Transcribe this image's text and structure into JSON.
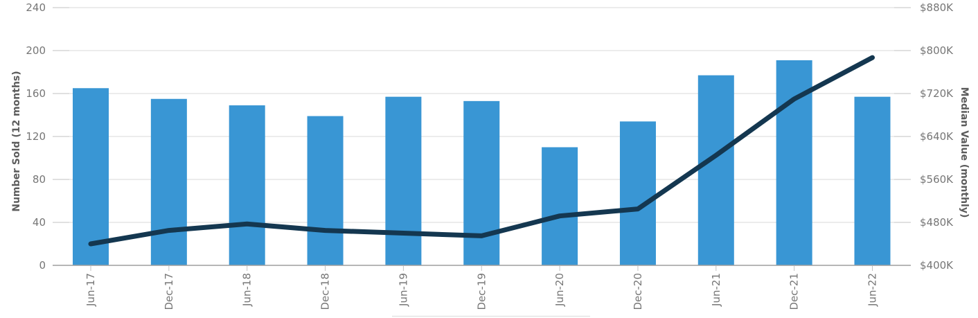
{
  "chart_data": {
    "type": "combo-bar-line",
    "categories": [
      "Jun-17",
      "Dec-17",
      "Jun-18",
      "Dec-18",
      "Jun-19",
      "Dec-19",
      "Jun-20",
      "Dec-20",
      "Jun-21",
      "Dec-21",
      "Jun-22"
    ],
    "series": [
      {
        "name": "Number Sold",
        "type": "bar",
        "axis": "left",
        "values": [
          165,
          155,
          149,
          139,
          157,
          153,
          110,
          134,
          177,
          191,
          157
        ]
      },
      {
        "name": "Median Value",
        "type": "line",
        "axis": "right",
        "unit": "thousand USD",
        "values": [
          440,
          465,
          477,
          465,
          460,
          455,
          492,
          505,
          605,
          710,
          787
        ]
      }
    ],
    "left_axis": {
      "label": "Number Sold (12 months)",
      "ticks": [
        0,
        40,
        80,
        120,
        160,
        200,
        240
      ],
      "range": [
        0,
        240
      ]
    },
    "right_axis": {
      "label": "Median Value (monthly)",
      "tick_labels": [
        "$400K",
        "$480K",
        "$560K",
        "$640K",
        "$720K",
        "$800K",
        "$880K"
      ],
      "tick_values_k": [
        400,
        480,
        560,
        640,
        720,
        800,
        880
      ],
      "range_k": [
        400,
        880
      ]
    },
    "grid": true,
    "legend_box_top_border_visible": true,
    "colors": {
      "bar": "#3996d4",
      "line": "#143750",
      "gridline": "#d9d9d9",
      "tick": "#c2c2c2",
      "axis_line": "#9e9e9e",
      "tick_text": "#767676",
      "axis_title_text": "#5c5c5c",
      "legend_border": "#e4e4e4"
    }
  }
}
